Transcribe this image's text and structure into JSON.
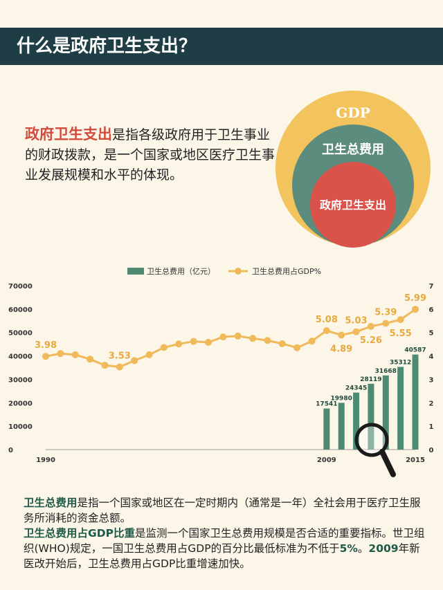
{
  "header": {
    "title": "什么是政府卫生支出？"
  },
  "definition": {
    "highlight": "政府卫生支出",
    "text": "是指各级政府用于卫生事业的财政拨款，是一个国家或地区医疗卫生事业发展规模和水平的体现。"
  },
  "venn": {
    "outer": "GDP",
    "middle": "卫生总费用",
    "inner": "政府卫生支出",
    "colors": {
      "outer": "#f3c35e",
      "middle": "#5b8c7d",
      "inner": "#d9534a"
    }
  },
  "chart_data": {
    "type": "bar+line",
    "legend": [
      "卫生总费用（亿元）",
      "卫生总费用占GDP%"
    ],
    "legend_position": "top",
    "y_left": {
      "min": 0,
      "max": 70000,
      "ticks": [
        0,
        10000,
        20000,
        30000,
        40000,
        50000,
        60000,
        70000
      ]
    },
    "y_right": {
      "min": 0,
      "max": 7,
      "ticks": [
        0,
        1,
        2,
        3,
        4,
        5,
        6,
        7
      ]
    },
    "x_range": [
      1990,
      2015
    ],
    "x_labels": [
      1990,
      2009,
      2015
    ],
    "bars": {
      "name": "卫生总费用（亿元）",
      "x": [
        2009,
        2010,
        2011,
        2012,
        2013,
        2014,
        2015
      ],
      "values": [
        17541,
        19980,
        24345,
        28119,
        31668,
        35312,
        40587
      ],
      "color": "#4f8a72"
    },
    "line": {
      "name": "卫生总费用占GDP%",
      "color": "#f0b95a",
      "x": [
        1990,
        1991,
        1992,
        1993,
        1994,
        1995,
        1996,
        1997,
        1998,
        1999,
        2000,
        2001,
        2002,
        2003,
        2004,
        2005,
        2006,
        2007,
        2008,
        2009,
        2010,
        2011,
        2012,
        2013,
        2014,
        2015
      ],
      "values": [
        3.98,
        4.1,
        4.05,
        3.86,
        3.6,
        3.53,
        3.8,
        4.05,
        4.36,
        4.51,
        4.62,
        4.58,
        4.81,
        4.85,
        4.75,
        4.66,
        4.52,
        4.35,
        4.63,
        5.08,
        4.89,
        5.03,
        5.26,
        5.39,
        5.55,
        5.99
      ],
      "labels": [
        {
          "x": 1990,
          "text": "3.98",
          "pos": "above"
        },
        {
          "x": 1995,
          "text": "3.53",
          "pos": "above"
        },
        {
          "x": 2009,
          "text": "5.08",
          "pos": "above"
        },
        {
          "x": 2010,
          "text": "4.89",
          "pos": "below"
        },
        {
          "x": 2011,
          "text": "5.03",
          "pos": "above"
        },
        {
          "x": 2012,
          "text": "5.26",
          "pos": "below"
        },
        {
          "x": 2013,
          "text": "5.39",
          "pos": "above"
        },
        {
          "x": 2014,
          "text": "5.55",
          "pos": "below"
        },
        {
          "x": 2015,
          "text": "5.99",
          "pos": "above"
        }
      ]
    }
  },
  "bottom": {
    "p1_term": "卫生总费用",
    "p1_text": "是指一个国家或地区在一定时期内（通常是一年）全社会用于医疗卫生服务所消耗的资金总额。",
    "p2_term": "卫生总费用占GDP比重",
    "p2_text_a": "是监测一个国家卫生总费用规模是否合适的重要指标。世卫组织(WHO)规定，一国卫生总费用占GDP的百分比最低标准为不低于",
    "p2_bold_a": "5%",
    "p2_text_b": "。",
    "p2_bold_b": "2009",
    "p2_text_c": "年新医改开始后，卫生总费用占GDP比重增速加快。"
  }
}
